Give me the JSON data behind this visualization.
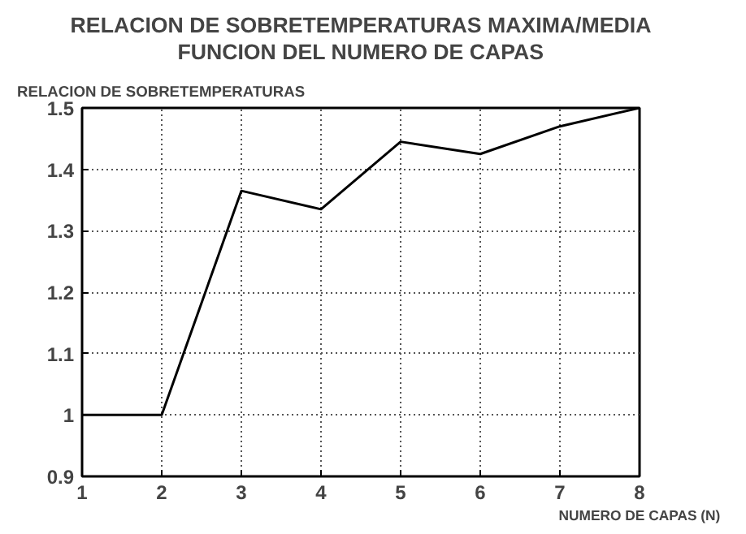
{
  "chart_data": {
    "type": "line",
    "title": "RELACION DE SOBRETEMPERATURAS MAXIMA/MEDIA\nFUNCION DEL NUMERO DE CAPAS",
    "xlabel": "NUMERO DE CAPAS (N)",
    "ylabel": "RELACION DE SOBRETEMPERATURAS",
    "x": [
      1,
      2,
      3,
      4,
      5,
      6,
      7,
      8
    ],
    "series": [
      {
        "color": "#000000",
        "values": [
          1,
          1,
          1.365,
          1.335,
          1.445,
          1.425,
          1.47,
          1.5
        ]
      }
    ],
    "xlim": [
      1,
      8
    ],
    "xticks": [
      1,
      2,
      3,
      4,
      5,
      6,
      7,
      8
    ],
    "ylim": [
      0.9,
      1.5
    ],
    "yticks": [
      0.9,
      1,
      1.1,
      1.2,
      1.3,
      1.4,
      1.5
    ],
    "grid": true,
    "marker": "none",
    "line_style": "solid"
  }
}
